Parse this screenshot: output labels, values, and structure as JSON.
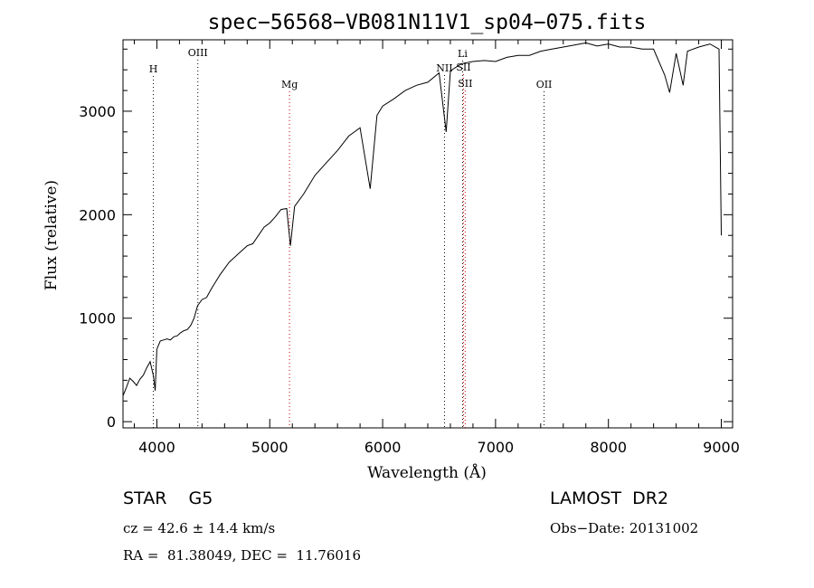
{
  "chart_data": {
    "type": "line",
    "title": "spec−56568−VB081N11V1_sp04−075.fits",
    "xlabel": "Wavelength (Å)",
    "ylabel": "Flux (relative)",
    "xlim": [
      3700,
      9100
    ],
    "ylim": [
      -60,
      3690
    ],
    "x_ticks": [
      4000,
      5000,
      6000,
      7000,
      8000,
      9000
    ],
    "y_ticks": [
      0,
      1000,
      2000,
      3000
    ],
    "grid": false,
    "series": [
      {
        "color": "#000000",
        "points": [
          [
            3700,
            250
          ],
          [
            3730,
            330
          ],
          [
            3760,
            420
          ],
          [
            3790,
            390
          ],
          [
            3820,
            350
          ],
          [
            3850,
            410
          ],
          [
            3880,
            450
          ],
          [
            3910,
            520
          ],
          [
            3940,
            580
          ],
          [
            3970,
            440
          ],
          [
            3985,
            300
          ],
          [
            4000,
            700
          ],
          [
            4030,
            780
          ],
          [
            4060,
            790
          ],
          [
            4090,
            800
          ],
          [
            4120,
            790
          ],
          [
            4150,
            820
          ],
          [
            4180,
            830
          ],
          [
            4210,
            860
          ],
          [
            4240,
            880
          ],
          [
            4270,
            890
          ],
          [
            4300,
            930
          ],
          [
            4330,
            1000
          ],
          [
            4360,
            1120
          ],
          [
            4400,
            1180
          ],
          [
            4440,
            1200
          ],
          [
            4480,
            1280
          ],
          [
            4520,
            1350
          ],
          [
            4560,
            1420
          ],
          [
            4600,
            1480
          ],
          [
            4640,
            1540
          ],
          [
            4680,
            1580
          ],
          [
            4720,
            1620
          ],
          [
            4760,
            1660
          ],
          [
            4800,
            1700
          ],
          [
            4850,
            1720
          ],
          [
            4900,
            1800
          ],
          [
            4950,
            1880
          ],
          [
            5000,
            1920
          ],
          [
            5050,
            1980
          ],
          [
            5100,
            2050
          ],
          [
            5150,
            2060
          ],
          [
            5183,
            1700
          ],
          [
            5220,
            2080
          ],
          [
            5300,
            2200
          ],
          [
            5400,
            2380
          ],
          [
            5500,
            2500
          ],
          [
            5600,
            2620
          ],
          [
            5700,
            2760
          ],
          [
            5800,
            2840
          ],
          [
            5890,
            2250
          ],
          [
            5950,
            2960
          ],
          [
            6000,
            3050
          ],
          [
            6100,
            3120
          ],
          [
            6200,
            3200
          ],
          [
            6300,
            3250
          ],
          [
            6400,
            3280
          ],
          [
            6500,
            3370
          ],
          [
            6563,
            2800
          ],
          [
            6600,
            3390
          ],
          [
            6700,
            3460
          ],
          [
            6800,
            3480
          ],
          [
            6900,
            3490
          ],
          [
            7000,
            3480
          ],
          [
            7100,
            3520
          ],
          [
            7200,
            3540
          ],
          [
            7300,
            3540
          ],
          [
            7400,
            3580
          ],
          [
            7500,
            3600
          ],
          [
            7600,
            3620
          ],
          [
            7700,
            3640
          ],
          [
            7800,
            3660
          ],
          [
            7900,
            3630
          ],
          [
            8000,
            3650
          ],
          [
            8100,
            3620
          ],
          [
            8200,
            3620
          ],
          [
            8300,
            3600
          ],
          [
            8400,
            3600
          ],
          [
            8498,
            3350
          ],
          [
            8542,
            3180
          ],
          [
            8600,
            3560
          ],
          [
            8662,
            3250
          ],
          [
            8700,
            3580
          ],
          [
            8800,
            3620
          ],
          [
            8900,
            3650
          ],
          [
            8980,
            3600
          ],
          [
            9000,
            1800
          ]
        ]
      }
    ],
    "lines": [
      {
        "label": "H",
        "x": 3969,
        "color": "#000000"
      },
      {
        "label": "OIII",
        "x": 4363,
        "color": "#000000"
      },
      {
        "label": "Mg",
        "x": 5175,
        "color": "#cc0000"
      },
      {
        "label": "NII",
        "x": 6548,
        "color": "#000000"
      },
      {
        "label": "Li",
        "x": 6708,
        "color": "#000000"
      },
      {
        "label": "SII",
        "x": 6716,
        "color": "#cc0000"
      },
      {
        "label": "SII",
        "x": 6731,
        "color": "#cc0000"
      },
      {
        "label": "OII",
        "x": 7430,
        "color": "#000000"
      }
    ]
  },
  "info": {
    "class_label": "STAR    G5",
    "survey_label": "LAMOST  DR2",
    "cz_text": "cz = 42.6 ± 14.4 km/s",
    "obs_date_text": "Obs−Date: 20131002",
    "coords_text": "RA =  81.38049, DEC =  11.76016"
  }
}
